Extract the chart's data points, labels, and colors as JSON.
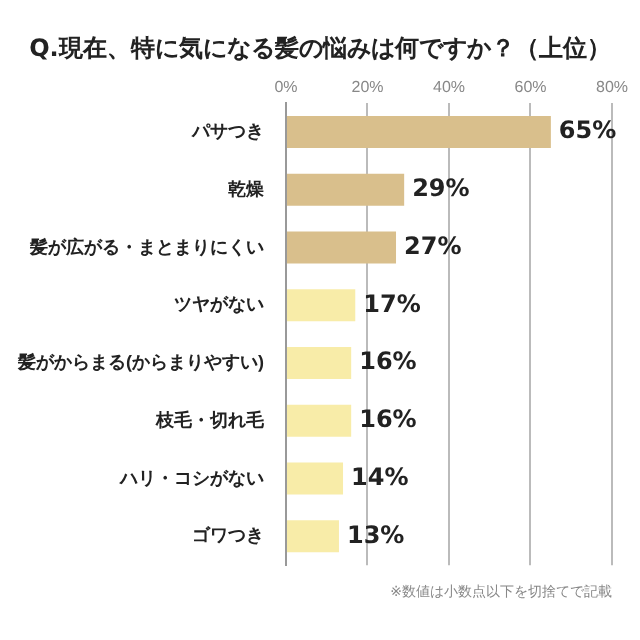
{
  "chart_data": {
    "type": "bar",
    "orientation": "horizontal",
    "title": "Q.現在、特に気になる髪の悩みは何ですか？（上位）",
    "categories": [
      "パサつき",
      "乾燥",
      "髪が広がる・まとまりにくい",
      "ツヤがない",
      "髪がからまる(からまりやすい)",
      "枝毛・切れ毛",
      "ハリ・コシがない",
      "ゴワつき"
    ],
    "values": [
      65,
      29,
      27,
      17,
      16,
      16,
      14,
      13
    ],
    "value_labels": [
      "65%",
      "29%",
      "27%",
      "17%",
      "16%",
      "16%",
      "14%",
      "13%"
    ],
    "colors": [
      "#d9bf8c",
      "#d9bf8c",
      "#d9bf8c",
      "#f8eca8",
      "#f8eca8",
      "#f8eca8",
      "#f8eca8",
      "#f8eca8"
    ],
    "xlim": [
      0,
      80
    ],
    "xticks": [
      {
        "value": 0,
        "label": "0%"
      },
      {
        "value": 20,
        "label": "20%"
      },
      {
        "value": 40,
        "label": "40%"
      },
      {
        "value": 60,
        "label": "60%"
      },
      {
        "value": 80,
        "label": "80%"
      }
    ],
    "grid": "x",
    "legend": false,
    "annotations": [
      "※数値は小数点以下を切捨てで記載"
    ]
  }
}
